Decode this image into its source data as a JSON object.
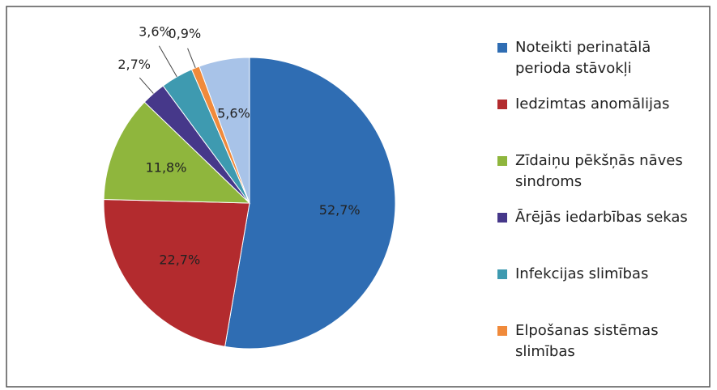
{
  "chart_data": {
    "type": "pie",
    "categories": [
      "Noteikti perinatālā perioda stāvokļi",
      "Iedzimtas anomālijas",
      "Zīdaiņu pēkšņās nāves sindroms",
      "Ārējās iedarbības sekas",
      "Infekcijas slimības",
      "Elpošanas sistēmas slimības",
      null
    ],
    "values": [
      52.7,
      22.7,
      11.8,
      2.7,
      3.6,
      0.9,
      5.6
    ],
    "value_labels": [
      "52,7%",
      "22,7%",
      "11,8%",
      "2,7%",
      "3,6%",
      "0,9%",
      "5,6%"
    ],
    "colors": [
      "#2f6db3",
      "#b32b2e",
      "#8fb63d",
      "#46388a",
      "#3e9ab0",
      "#f08a3b",
      "#a8c3e8"
    ]
  }
}
